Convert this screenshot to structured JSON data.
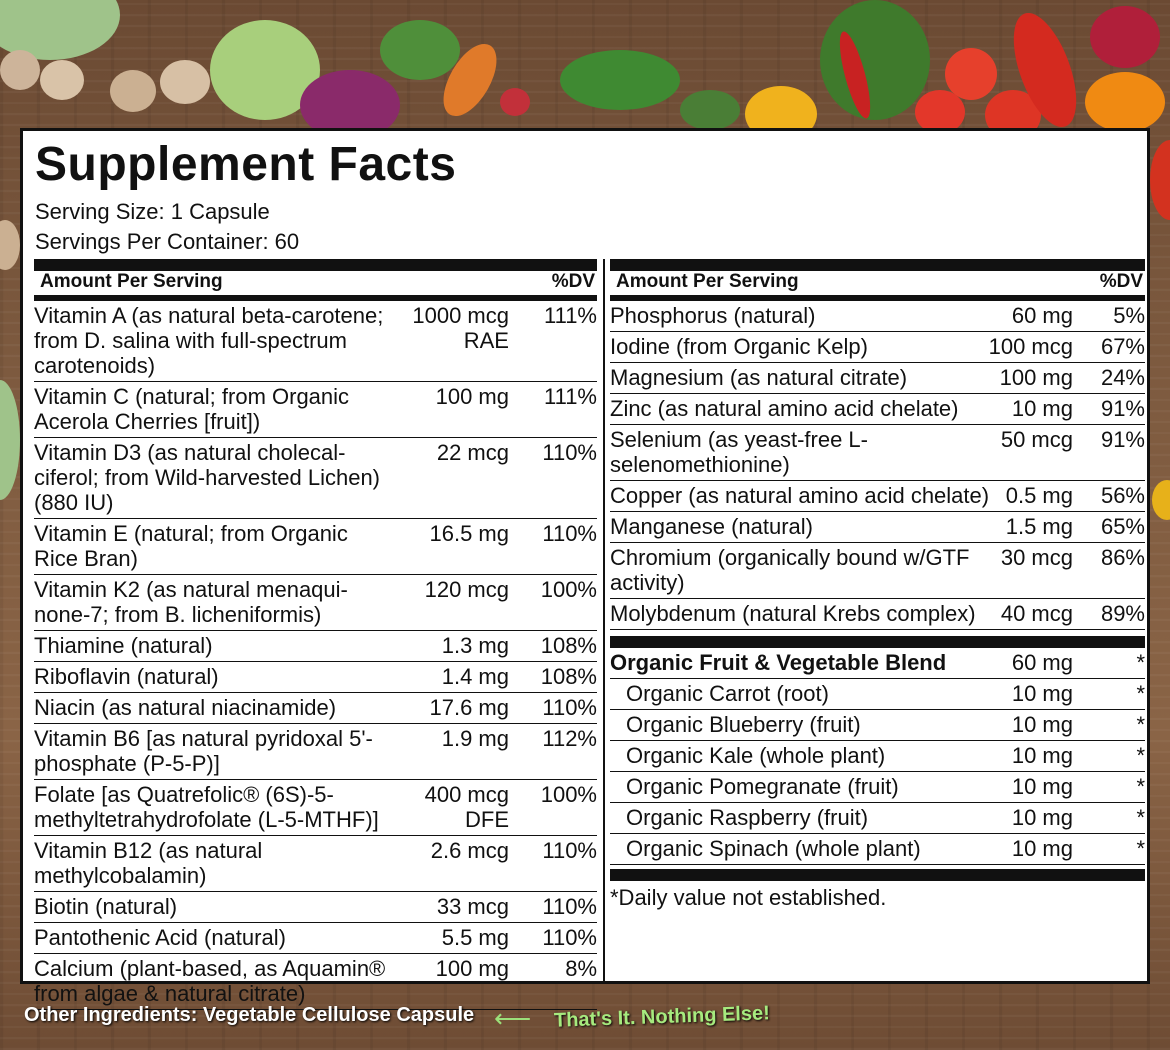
{
  "colors": {
    "panel": "#ffffff",
    "ink": "#111111",
    "accent_green": "#a6ea7e"
  },
  "title": "Supplement Facts",
  "serving_size": "Serving Size: 1 Capsule",
  "servings_per_container": "Servings Per Container:  60",
  "header": {
    "amount": "Amount Per Serving",
    "dv": "%DV"
  },
  "left_rows": [
    {
      "name": "Vitamin A (as natural beta-carotene; from D. salina with full-spectrum carotenoids)",
      "amount": "1000 mcg RAE",
      "dv": "111%"
    },
    {
      "name": "Vitamin C (natural; from Organic Acerola Cherries [fruit])",
      "amount": "100 mg",
      "dv": "111%"
    },
    {
      "name": "Vitamin D3 (as natural cholecal-ciferol; from Wild-harvested Lichen) (880 IU)",
      "amount": "22 mcg",
      "dv": "110%"
    },
    {
      "name": "Vitamin E (natural; from Organic Rice Bran)",
      "amount": "16.5 mg",
      "dv": "110%"
    },
    {
      "name": "Vitamin K2 (as natural menaqui-none-7; from B. licheniformis)",
      "amount": "120 mcg",
      "dv": "100%"
    },
    {
      "name": "Thiamine (natural)",
      "amount": "1.3 mg",
      "dv": "108%"
    },
    {
      "name": "Riboflavin (natural)",
      "amount": "1.4 mg",
      "dv": "108%"
    },
    {
      "name": "Niacin (as natural niacinamide)",
      "amount": "17.6 mg",
      "dv": "110%"
    },
    {
      "name": "Vitamin B6 [as natural pyridoxal 5'-phosphate (P-5-P)]",
      "amount": "1.9 mg",
      "dv": "112%"
    },
    {
      "name": "Folate [as Quatrefolic® (6S)-5-methyltetrahydrofolate (L-5-MTHF)]",
      "amount": "400 mcg DFE",
      "dv": "100%"
    },
    {
      "name": "Vitamin B12 (as natural methylcobalamin)",
      "amount": "2.6 mcg",
      "dv": "110%"
    },
    {
      "name": "Biotin (natural)",
      "amount": "33 mcg",
      "dv": "110%"
    },
    {
      "name": "Pantothenic Acid (natural)",
      "amount": "5.5 mg",
      "dv": "110%"
    },
    {
      "name": "Calcium (plant-based, as Aquamin® from algae & natural citrate)",
      "amount": "100 mg",
      "dv": "8%"
    }
  ],
  "right_rows": [
    {
      "name": "Phosphorus (natural)",
      "amount": "60 mg",
      "dv": "5%"
    },
    {
      "name": "Iodine (from Organic Kelp)",
      "amount": "100 mcg",
      "dv": "67%"
    },
    {
      "name": "Magnesium (as natural citrate)",
      "amount": "100 mg",
      "dv": "24%"
    },
    {
      "name": "Zinc (as natural amino acid chelate)",
      "amount": "10 mg",
      "dv": "91%"
    },
    {
      "name": "Selenium (as yeast-free L-selenomethionine)",
      "amount": "50 mcg",
      "dv": "91%"
    },
    {
      "name": "Copper (as natural amino acid chelate)",
      "amount": "0.5 mg",
      "dv": "56%"
    },
    {
      "name": "Manganese (natural)",
      "amount": "1.5 mg",
      "dv": "65%"
    },
    {
      "name": "Chromium (organically bound w/GTF activity)",
      "amount": "30 mcg",
      "dv": "86%"
    },
    {
      "name": "Molybdenum (natural Krebs complex)",
      "amount": "40 mcg",
      "dv": "89%"
    }
  ],
  "blend": {
    "name": "Organic Fruit & Vegetable Blend",
    "amount": "60 mg",
    "dv": "*"
  },
  "blend_items": [
    {
      "name": "Organic Carrot (root)",
      "amount": "10 mg",
      "dv": "*"
    },
    {
      "name": "Organic Blueberry (fruit)",
      "amount": "10 mg",
      "dv": "*"
    },
    {
      "name": "Organic Kale (whole plant)",
      "amount": "10 mg",
      "dv": "*"
    },
    {
      "name": "Organic Pomegranate (fruit)",
      "amount": "10 mg",
      "dv": "*"
    },
    {
      "name": "Organic Raspberry (fruit)",
      "amount": "10 mg",
      "dv": "*"
    },
    {
      "name": "Organic Spinach (whole plant)",
      "amount": "10 mg",
      "dv": "*"
    }
  ],
  "footnote": "*Daily value not established.",
  "other_ingredients": "Other Ingredients: Vegetable Cellulose Capsule",
  "tagline": "That's It. Nothing Else!"
}
